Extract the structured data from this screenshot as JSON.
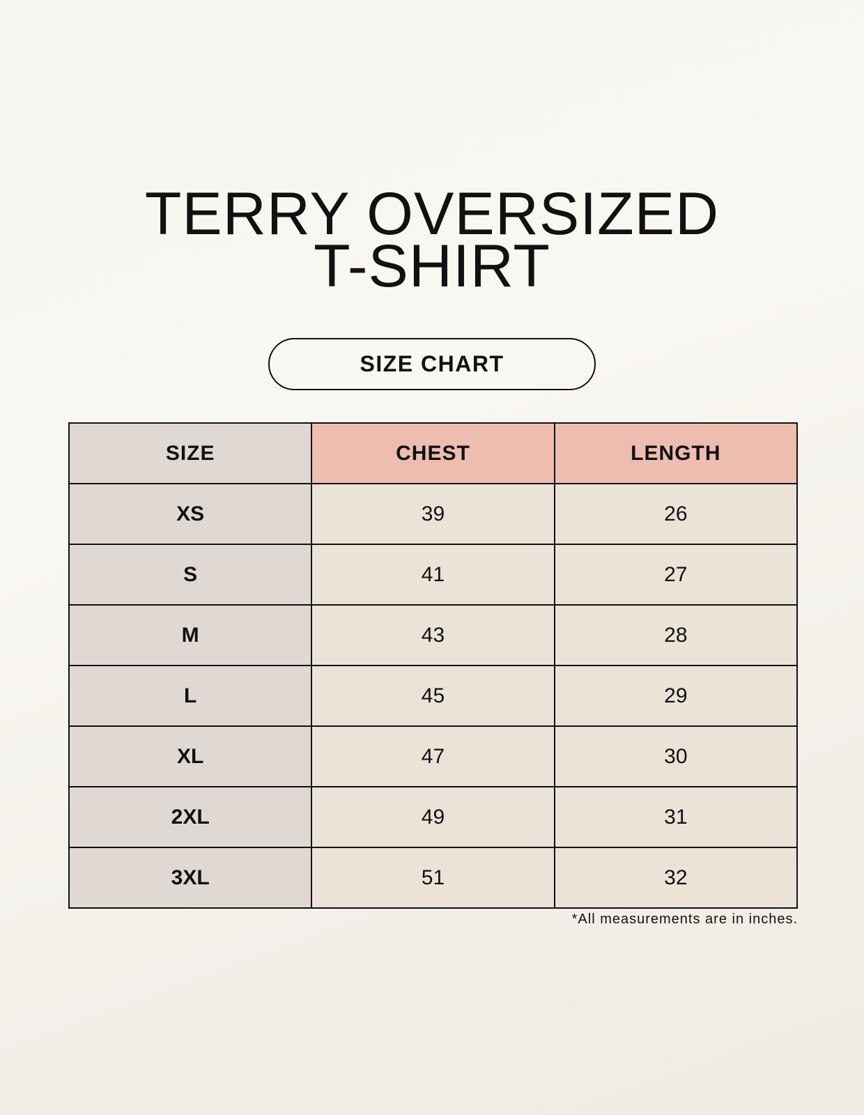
{
  "title": {
    "line1": "TERRY OVERSIZED",
    "line2": "T-SHIRT"
  },
  "badge": "SIZE CHART",
  "table": {
    "headers": [
      "SIZE",
      "CHEST",
      "LENGTH"
    ],
    "rows": [
      [
        "XS",
        "39",
        "26"
      ],
      [
        "S",
        "41",
        "27"
      ],
      [
        "M",
        "43",
        "28"
      ],
      [
        "L",
        "45",
        "29"
      ],
      [
        "XL",
        "47",
        "30"
      ],
      [
        "2XL",
        "49",
        "31"
      ],
      [
        "3XL",
        "51",
        "32"
      ]
    ]
  },
  "footnote": "*All measurements are in inches.",
  "colors": {
    "size_column": "#e0d8d3",
    "measure_header": "#edbdb0",
    "cell": "#ebe2d8"
  }
}
